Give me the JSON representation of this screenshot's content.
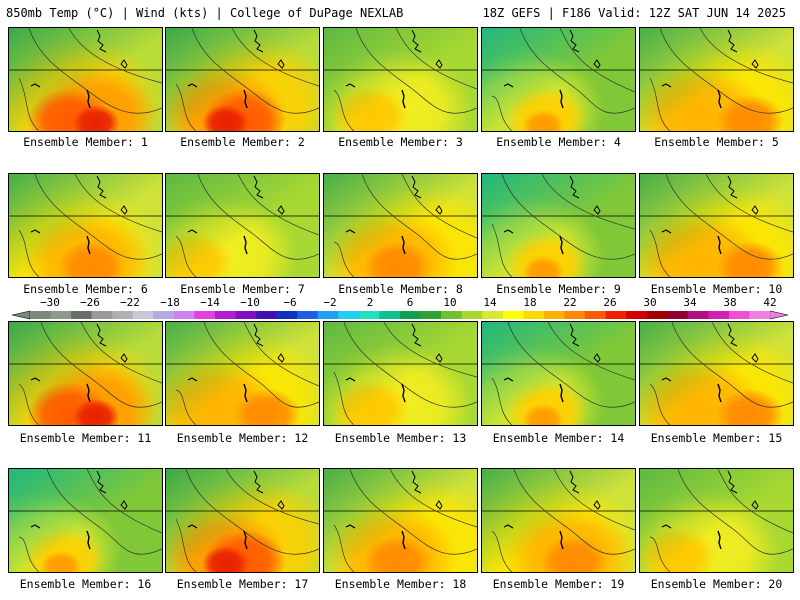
{
  "header": {
    "left": "850mb Temp (°C) | Wind (kts) | College of DuPage NEXLAB",
    "right": "18Z GEFS | F186 Valid: 12Z SAT JUN 14 2025"
  },
  "colorbar": {
    "tick_labels": [
      "-30",
      "-26",
      "-22",
      "-18",
      "-14",
      "-10",
      "-6",
      "-2",
      "2",
      "6",
      "10",
      "14",
      "18",
      "22",
      "26",
      "30",
      "34",
      "38",
      "42"
    ],
    "min": -30,
    "max": 42,
    "step": 2,
    "colors": [
      "#7a8a7a",
      "#8c9a8c",
      "#6b6b6b",
      "#9a9a9a",
      "#b0b0b0",
      "#c8c8d8",
      "#b8a8e0",
      "#d080f0",
      "#e040e0",
      "#b020d0",
      "#8010c0",
      "#4010b0",
      "#1030c0",
      "#2060e0",
      "#20a0f0",
      "#20d0f0",
      "#20e0c0",
      "#10c090",
      "#10a050",
      "#30a030",
      "#70c030",
      "#a8d830",
      "#d8e830",
      "#ffff00",
      "#ffd800",
      "#ffb000",
      "#ff8800",
      "#ff5a00",
      "#f02000",
      "#d00000",
      "#a00000",
      "#900030",
      "#b01080",
      "#d020b0",
      "#f050d0",
      "#f080e0"
    ]
  },
  "panels": [
    {
      "label": "Ensemble Member: 1",
      "scheme": "hot"
    },
    {
      "label": "Ensemble Member: 2",
      "scheme": "hot"
    },
    {
      "label": "Ensemble Member: 3",
      "scheme": "mild"
    },
    {
      "label": "Ensemble Member: 4",
      "scheme": "cool"
    },
    {
      "label": "Ensemble Member: 5",
      "scheme": "warm"
    },
    {
      "label": "Ensemble Member: 6",
      "scheme": "warm"
    },
    {
      "label": "Ensemble Member: 7",
      "scheme": "mild"
    },
    {
      "label": "Ensemble Member: 8",
      "scheme": "warm"
    },
    {
      "label": "Ensemble Member: 9",
      "scheme": "cool"
    },
    {
      "label": "Ensemble Member: 10",
      "scheme": "warm"
    },
    {
      "label": "Ensemble Member: 11",
      "scheme": "hot"
    },
    {
      "label": "Ensemble Member: 12",
      "scheme": "warm"
    },
    {
      "label": "Ensemble Member: 13",
      "scheme": "mild"
    },
    {
      "label": "Ensemble Member: 14",
      "scheme": "cool"
    },
    {
      "label": "Ensemble Member: 15",
      "scheme": "warm"
    },
    {
      "label": "Ensemble Member: 16",
      "scheme": "cool"
    },
    {
      "label": "Ensemble Member: 17",
      "scheme": "hot"
    },
    {
      "label": "Ensemble Member: 18",
      "scheme": "warm"
    },
    {
      "label": "Ensemble Member: 19",
      "scheme": "warm"
    },
    {
      "label": "Ensemble Member: 20",
      "scheme": "mild"
    }
  ]
}
